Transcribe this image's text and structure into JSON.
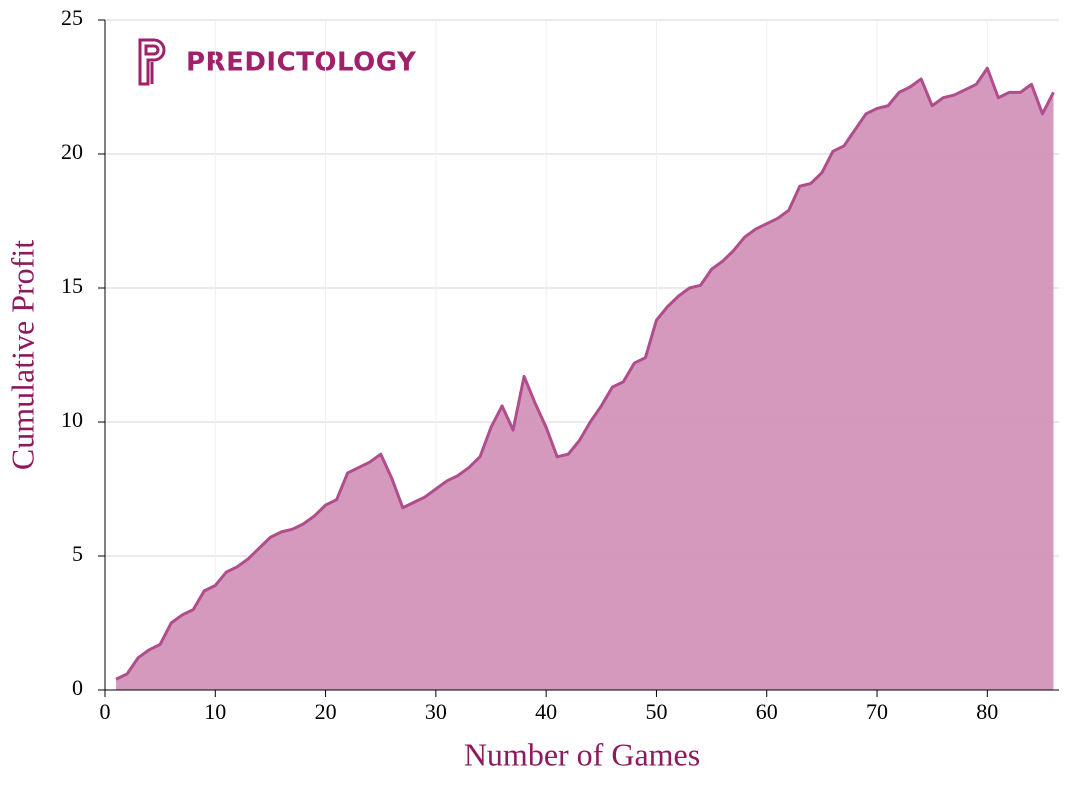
{
  "chart_data": {
    "type": "area",
    "logo": "PREDICTOLOGY",
    "x_label": "Number of Games",
    "y_label": "Cumulative Profit",
    "x": [
      1,
      2,
      3,
      4,
      5,
      6,
      7,
      8,
      9,
      10,
      11,
      12,
      13,
      14,
      15,
      16,
      17,
      18,
      19,
      20,
      21,
      22,
      23,
      24,
      25,
      26,
      27,
      28,
      29,
      30,
      31,
      32,
      33,
      34,
      35,
      36,
      37,
      38,
      39,
      40,
      41,
      42,
      43,
      44,
      45,
      46,
      47,
      48,
      49,
      50,
      51,
      52,
      53,
      54,
      55,
      56,
      57,
      58,
      59,
      60,
      61,
      62,
      63,
      64,
      65,
      66,
      67,
      68,
      69,
      70,
      71,
      72,
      73,
      74,
      75,
      76,
      77,
      78,
      79,
      80,
      81,
      82,
      83,
      84,
      85,
      86
    ],
    "values": [
      0.4,
      0.6,
      1.2,
      1.5,
      1.7,
      2.5,
      2.8,
      3.0,
      3.7,
      3.9,
      4.4,
      4.6,
      4.9,
      5.3,
      5.7,
      5.9,
      6.0,
      6.2,
      6.5,
      6.9,
      7.1,
      8.1,
      8.3,
      8.5,
      8.8,
      7.9,
      6.8,
      7.0,
      7.2,
      7.5,
      7.8,
      8.0,
      8.3,
      8.7,
      9.8,
      10.6,
      9.7,
      11.7,
      10.7,
      9.8,
      8.7,
      8.8,
      9.3,
      10.0,
      10.6,
      11.3,
      11.5,
      12.2,
      12.4,
      13.8,
      14.3,
      14.7,
      15.0,
      15.1,
      15.7,
      16.0,
      16.4,
      16.9,
      17.2,
      17.4,
      17.6,
      17.9,
      18.8,
      18.9,
      19.3,
      20.1,
      20.3,
      20.9,
      21.5,
      21.7,
      21.8,
      22.3,
      22.5,
      22.8,
      21.8,
      22.1,
      22.2,
      22.4,
      22.6,
      23.2,
      22.1,
      22.3,
      22.3,
      22.6,
      21.5,
      22.3
    ],
    "fill_color": "#d293b9",
    "line_color": "#b14d8c",
    "xlim": [
      0,
      86.5
    ],
    "xticks": [
      0,
      10,
      20,
      30,
      40,
      50,
      60,
      70,
      80
    ],
    "ylim": [
      0,
      25
    ],
    "yticks": [
      0,
      5,
      10,
      15,
      20,
      25
    ],
    "grid": true
  }
}
